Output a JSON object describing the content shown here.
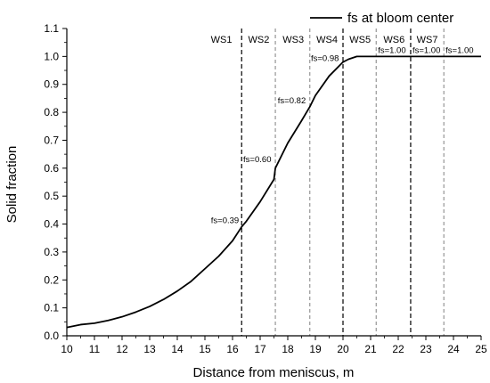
{
  "chart_data": {
    "type": "line",
    "xlabel": "Distance from meniscus, m",
    "ylabel": "Solid fraction",
    "xlim": [
      10,
      25
    ],
    "ylim": [
      0.0,
      1.1
    ],
    "x_ticks": [
      10,
      11,
      12,
      13,
      14,
      15,
      16,
      17,
      18,
      19,
      20,
      21,
      22,
      23,
      24,
      25
    ],
    "y_ticks": [
      "0.0",
      "0.1",
      "0.2",
      "0.3",
      "0.4",
      "0.5",
      "0.6",
      "0.7",
      "0.8",
      "0.9",
      "1.0",
      "1.1"
    ],
    "legend": {
      "position": "top-right",
      "entries": [
        "fs at bloom center"
      ]
    },
    "series": [
      {
        "name": "fs at bloom center",
        "color": "#000000",
        "x": [
          10.0,
          10.5,
          11.0,
          11.5,
          12.0,
          12.5,
          13.0,
          13.5,
          14.0,
          14.5,
          15.0,
          15.5,
          16.0,
          16.33,
          16.5,
          17.0,
          17.5,
          17.55,
          18.0,
          18.5,
          18.8,
          19.0,
          19.5,
          20.0,
          20.2,
          20.5,
          21.0,
          21.5,
          22.0,
          22.5,
          23.0,
          23.5,
          24.0,
          24.5,
          25.0
        ],
        "y": [
          0.03,
          0.04,
          0.045,
          0.055,
          0.068,
          0.085,
          0.105,
          0.13,
          0.16,
          0.195,
          0.24,
          0.285,
          0.34,
          0.39,
          0.41,
          0.48,
          0.56,
          0.6,
          0.69,
          0.77,
          0.82,
          0.86,
          0.93,
          0.98,
          0.99,
          1.0,
          1.0,
          1.0,
          1.0,
          1.0,
          1.0,
          1.0,
          1.0,
          1.0,
          1.0
        ]
      }
    ],
    "zone_boundaries": [
      16.33,
      17.55,
      18.8,
      20.0,
      21.2,
      22.45,
      23.65
    ],
    "zone_boundary_styles": [
      "dashed",
      "light-dashed",
      "light-dashed",
      "dashed",
      "light-dashed",
      "dashed",
      "light-dashed"
    ],
    "zones": [
      {
        "label": "WS1",
        "x": 15.6
      },
      {
        "label": "WS2",
        "x": 16.95
      },
      {
        "label": "WS3",
        "x": 18.2
      },
      {
        "label": "WS4",
        "x": 19.42
      },
      {
        "label": "WS5",
        "x": 20.62
      },
      {
        "label": "WS6",
        "x": 21.85
      },
      {
        "label": "WS7",
        "x": 23.05
      }
    ],
    "annotations": [
      {
        "text": "fs=0.39",
        "x": 16.33,
        "y": 0.39
      },
      {
        "text": "fs=0.60",
        "x": 17.55,
        "y": 0.6
      },
      {
        "text": "fs=0.82",
        "x": 18.8,
        "y": 0.82
      },
      {
        "text": "fs=0.98",
        "x": 20.0,
        "y": 0.98
      },
      {
        "text": "fs=1.00",
        "x": 21.2,
        "y": 1.0
      },
      {
        "text": "fs=1.00",
        "x": 22.45,
        "y": 1.0
      },
      {
        "text": "fs=1.00",
        "x": 23.65,
        "y": 1.0
      }
    ]
  }
}
